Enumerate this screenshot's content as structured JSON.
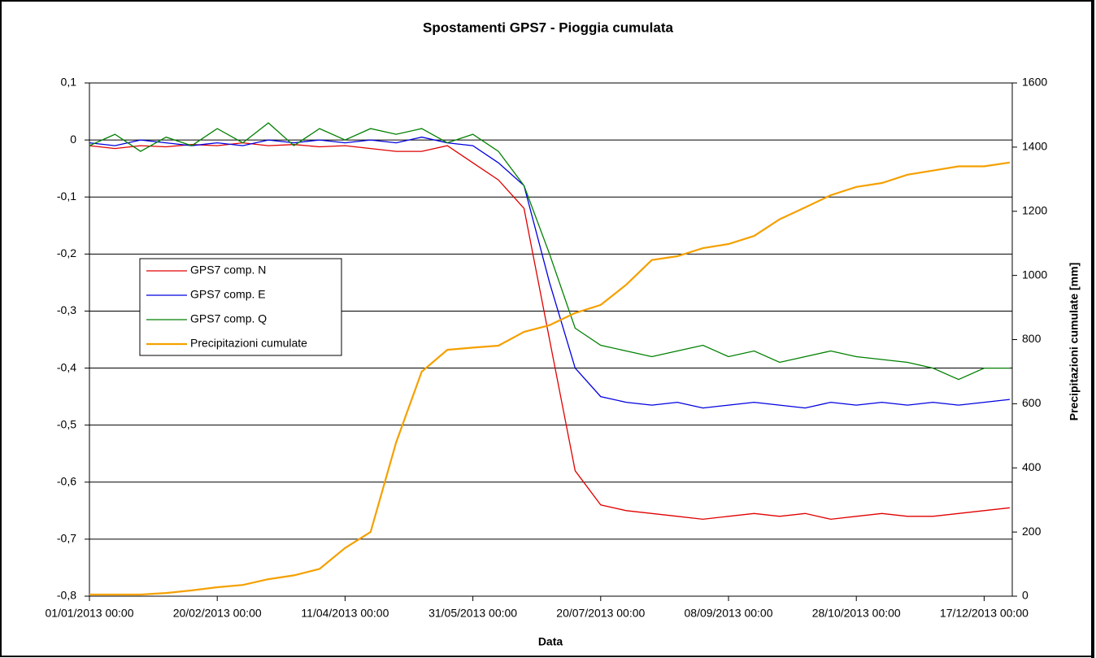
{
  "chart_data": {
    "type": "line",
    "title": "Spostamenti GPS7 - Pioggia cumulata",
    "x_label": "Data",
    "y2_label": "Precipitazioni  cumulate [mm]",
    "x": [
      "01/01/2013 00:00",
      "11/01/2013 00:00",
      "21/01/2013 00:00",
      "31/01/2013 00:00",
      "10/02/2013 00:00",
      "20/02/2013 00:00",
      "02/03/2013 00:00",
      "12/03/2013 00:00",
      "22/03/2013 00:00",
      "01/04/2013 00:00",
      "11/04/2013 00:00",
      "21/04/2013 00:00",
      "01/05/2013 00:00",
      "11/05/2013 00:00",
      "21/05/2013 00:00",
      "31/05/2013 00:00",
      "10/06/2013 00:00",
      "20/06/2013 00:00",
      "30/06/2013 00:00",
      "10/07/2013 00:00",
      "20/07/2013 00:00",
      "30/07/2013 00:00",
      "09/08/2013 00:00",
      "19/08/2013 00:00",
      "29/08/2013 00:00",
      "08/09/2013 00:00",
      "18/09/2013 00:00",
      "28/09/2013 00:00",
      "08/10/2013 00:00",
      "18/10/2013 00:00",
      "28/10/2013 00:00",
      "07/11/2013 00:00",
      "17/11/2013 00:00",
      "27/11/2013 00:00",
      "07/12/2013 00:00",
      "17/12/2013 00:00",
      "27/12/2013 00:00"
    ],
    "series": [
      {
        "name": "GPS7 comp. N",
        "color": "#e00000",
        "values": [
          -0.01,
          -0.015,
          -0.01,
          -0.012,
          -0.008,
          -0.01,
          -0.005,
          -0.01,
          -0.008,
          -0.012,
          -0.01,
          -0.015,
          -0.02,
          -0.02,
          -0.01,
          -0.04,
          -0.07,
          -0.12,
          -0.35,
          -0.58,
          -0.64,
          -0.65,
          -0.655,
          -0.66,
          -0.665,
          -0.66,
          -0.655,
          -0.66,
          -0.655,
          -0.665,
          -0.66,
          -0.655,
          -0.66,
          -0.66,
          -0.655,
          -0.65,
          -0.645
        ]
      },
      {
        "name": "GPS7 comp. E",
        "color": "#0000e0",
        "values": [
          -0.005,
          -0.01,
          0.0,
          -0.005,
          -0.01,
          -0.005,
          -0.01,
          0.0,
          -0.005,
          0.0,
          -0.005,
          0.0,
          -0.005,
          0.005,
          -0.005,
          -0.01,
          -0.04,
          -0.08,
          -0.25,
          -0.4,
          -0.45,
          -0.46,
          -0.465,
          -0.46,
          -0.47,
          -0.465,
          -0.46,
          -0.465,
          -0.47,
          -0.46,
          -0.465,
          -0.46,
          -0.465,
          -0.46,
          -0.465,
          -0.46,
          -0.455
        ]
      },
      {
        "name": "GPS7 comp. Q",
        "color": "#008000",
        "values": [
          -0.01,
          0.01,
          -0.02,
          0.005,
          -0.01,
          0.02,
          -0.005,
          0.03,
          -0.01,
          0.02,
          0.0,
          0.02,
          0.01,
          0.02,
          -0.005,
          0.01,
          -0.02,
          -0.08,
          -0.2,
          -0.33,
          -0.36,
          -0.37,
          -0.38,
          -0.37,
          -0.36,
          -0.38,
          -0.37,
          -0.39,
          -0.38,
          -0.37,
          -0.38,
          -0.385,
          -0.39,
          -0.4,
          -0.42,
          -0.4,
          -0.4
        ]
      },
      {
        "name": "Precipitazioni cumulate",
        "color": "#f5a000",
        "axis": "y2",
        "values": [
          5,
          5,
          5,
          10,
          18,
          28,
          35,
          53,
          65,
          85,
          150,
          200,
          480,
          700,
          768,
          775,
          781,
          824,
          845,
          883,
          908,
          971,
          1048,
          1060,
          1085,
          1098,
          1123,
          1175,
          1212,
          1250,
          1276,
          1288,
          1314,
          1327,
          1340,
          1340,
          1352
        ]
      }
    ],
    "xlim": [
      "01/01/2013 00:00",
      "28/12/2013 00:00"
    ],
    "xticks": [
      "01/01/2013 00:00",
      "20/02/2013 00:00",
      "11/04/2013 00:00",
      "31/05/2013 00:00",
      "20/07/2013 00:00",
      "08/09/2013 00:00",
      "28/10/2013 00:00",
      "17/12/2013 00:00"
    ],
    "ylim": [
      -0.8,
      0.1
    ],
    "yticks": [
      {
        "value": -0.8,
        "label": "-0,8"
      },
      {
        "value": -0.7,
        "label": "-0,7"
      },
      {
        "value": -0.6,
        "label": "-0,6"
      },
      {
        "value": -0.5,
        "label": "-0,5"
      },
      {
        "value": -0.4,
        "label": "-0,4"
      },
      {
        "value": -0.3,
        "label": "-0,3"
      },
      {
        "value": -0.2,
        "label": "-0,2"
      },
      {
        "value": -0.1,
        "label": "-0,1"
      },
      0,
      {
        "value": 0.1,
        "label": "0,1"
      }
    ],
    "y2lim": [
      0,
      1600
    ],
    "y2ticks": [
      0,
      200,
      400,
      600,
      800,
      1000,
      1200,
      1400,
      1600
    ],
    "grid": true,
    "legend": "left"
  }
}
